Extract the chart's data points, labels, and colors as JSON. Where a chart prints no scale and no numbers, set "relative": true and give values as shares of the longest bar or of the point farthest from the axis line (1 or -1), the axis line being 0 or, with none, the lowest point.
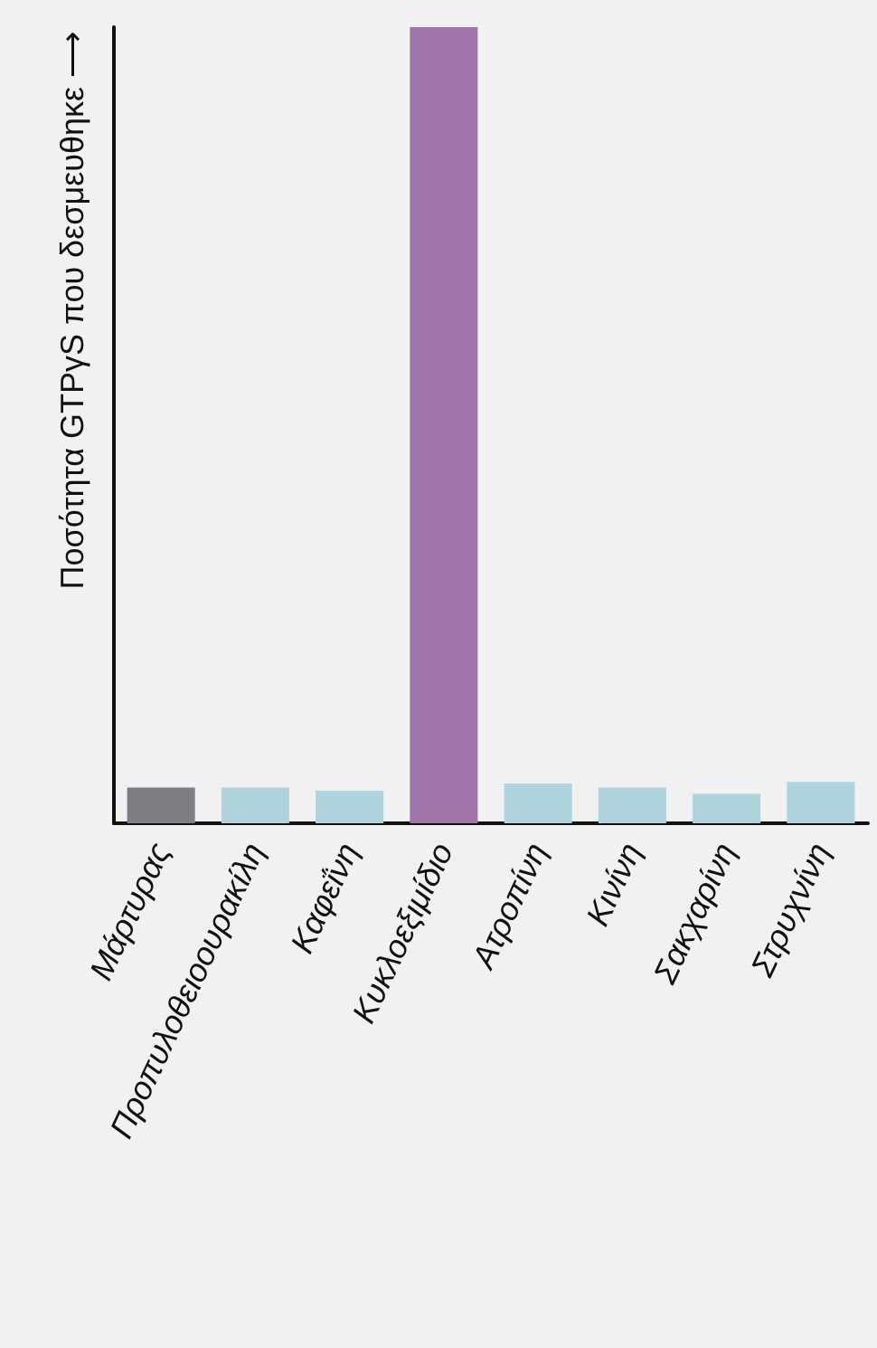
{
  "chart_data": {
    "type": "bar",
    "ylabel": "Ποσότητα GTPγS που δεσμευθηκε ⟶",
    "relative": true,
    "categories": [
      "Μάρτυρας",
      "Προπυλοθειοουρακίλη",
      "Καφεΐνη",
      "Κυκλοεξιμίδιο",
      "Ατροπίνη",
      "Κινίνη",
      "Σακχαρίνη",
      "Στρυχνίνη"
    ],
    "values": [
      0.045,
      0.045,
      0.041,
      1,
      0.05,
      0.045,
      0.037,
      0.052
    ],
    "colors": [
      "#7f7e83",
      "#b0d4dc",
      "#b0d4dc",
      "#9e75a8",
      "#b0d4dc",
      "#b0d4dc",
      "#b0d4dc",
      "#b0d4dc"
    ]
  }
}
